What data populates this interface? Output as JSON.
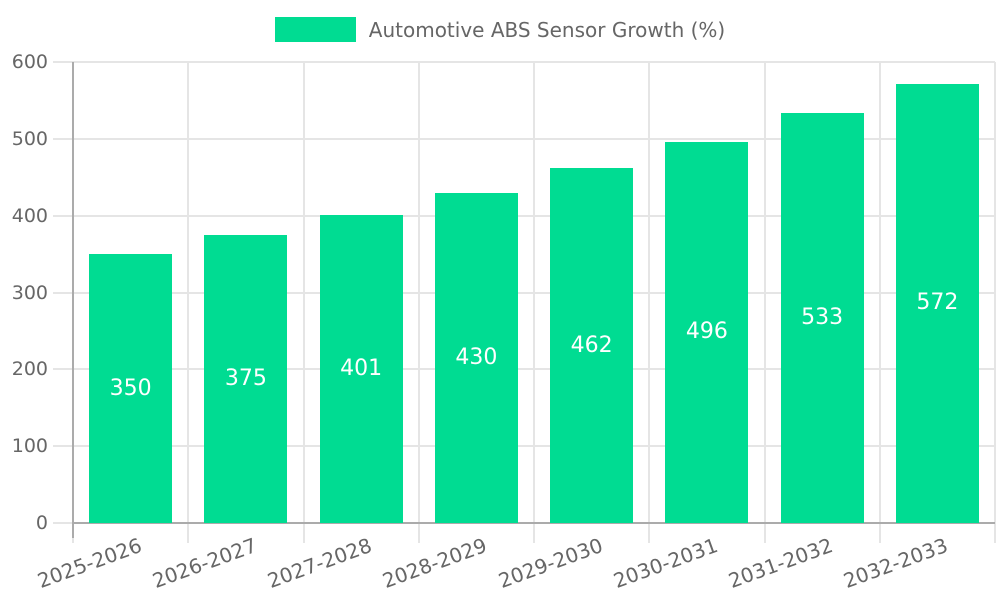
{
  "legend": {
    "swatch_color": "#00DC92"
  },
  "chart_data": {
    "type": "bar",
    "title": "Automotive ABS Sensor Growth (%)",
    "categories": [
      "2025-2026",
      "2026-2027",
      "2027-2028",
      "2028-2029",
      "2029-2030",
      "2030-2031",
      "2031-2032",
      "2032-2033"
    ],
    "values": [
      350,
      375,
      401,
      430,
      462,
      496,
      533,
      572
    ],
    "xlabel": "",
    "ylabel": "",
    "ylim": [
      0,
      600
    ],
    "y_ticks": [
      0,
      100,
      200,
      300,
      400,
      500,
      600
    ],
    "grid": "on",
    "legend_position": "top-center",
    "bar_color": "#00DC92",
    "value_label_color": "#ffffff",
    "axis_text_color": "#666666",
    "gridline_color": "#e5e5e5",
    "axis_line_color": "#ababab"
  }
}
